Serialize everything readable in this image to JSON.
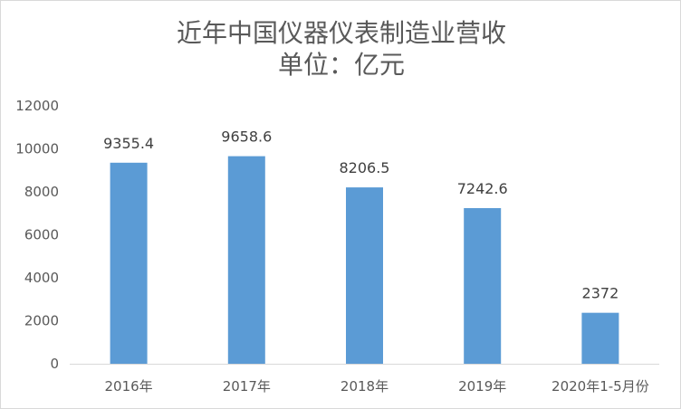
{
  "chart_data": {
    "type": "bar",
    "title": "近年中国仪器仪表制造业营收",
    "subtitle": "单位：亿元",
    "xlabel": "",
    "ylabel": "",
    "categories": [
      "2016年",
      "2017年",
      "2018年",
      "2019年",
      "2020年1-5月份"
    ],
    "values": [
      9355.4,
      9658.6,
      8206.5,
      7242.6,
      2372
    ],
    "ylim": [
      0,
      12000
    ],
    "yticks": [
      0,
      2000,
      4000,
      6000,
      8000,
      10000,
      12000
    ],
    "grid": false,
    "legend": "none",
    "data_labels": true,
    "colors": {
      "bar": "#5B9BD5",
      "title_text": "#595959",
      "tick_text": "#595959",
      "data_label_text": "#404040",
      "axis_line": "#D9D9D9"
    }
  }
}
